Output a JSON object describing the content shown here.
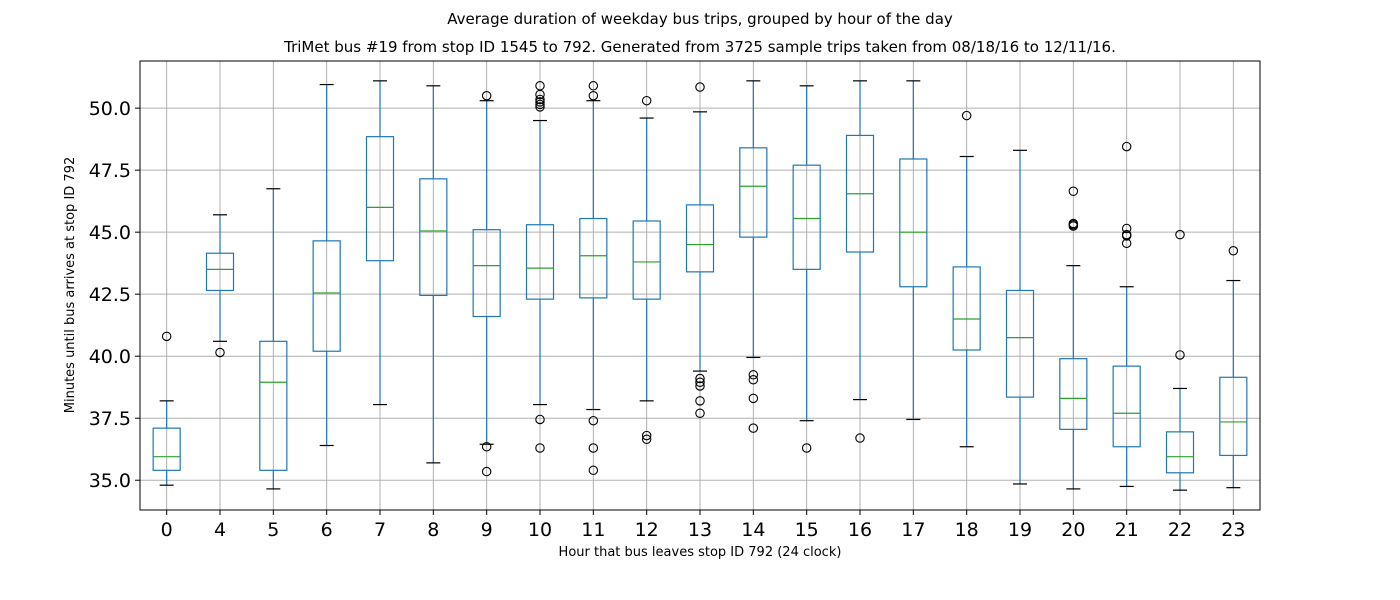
{
  "chart_data": {
    "type": "box",
    "title": "Average duration of weekday bus trips, grouped by hour of the day",
    "subtitle": "TriMet bus #19 from stop ID 1545 to 792. Generated from 3725 sample trips taken from 08/18/16 to 12/11/16.",
    "xlabel": "Hour that bus leaves stop ID 792 (24 clock)",
    "ylabel": "Minutes until bus arrives at stop ID 792",
    "ylim": [
      33.8,
      51.9
    ],
    "yticks": [
      35.0,
      37.5,
      40.0,
      42.5,
      45.0,
      47.5,
      50.0
    ],
    "ytick_labels": [
      "35.0",
      "37.5",
      "40.0",
      "42.5",
      "45.0",
      "47.5",
      "50.0"
    ],
    "grid": true,
    "categories": [
      "0",
      "4",
      "5",
      "6",
      "7",
      "8",
      "9",
      "10",
      "11",
      "12",
      "13",
      "14",
      "15",
      "16",
      "17",
      "18",
      "19",
      "20",
      "21",
      "22",
      "23"
    ],
    "boxes": [
      {
        "hour": "0",
        "whislo": 34.8,
        "q1": 35.4,
        "med": 35.95,
        "q3": 37.1,
        "whishi": 38.2,
        "fliers": [
          40.8
        ]
      },
      {
        "hour": "4",
        "whislo": 40.6,
        "q1": 42.65,
        "med": 43.5,
        "q3": 44.15,
        "whishi": 45.7,
        "fliers": [
          40.15
        ]
      },
      {
        "hour": "5",
        "whislo": 34.65,
        "q1": 35.4,
        "med": 38.95,
        "q3": 40.6,
        "whishi": 46.75,
        "fliers": []
      },
      {
        "hour": "6",
        "whislo": 36.4,
        "q1": 40.2,
        "med": 42.55,
        "q3": 44.65,
        "whishi": 50.95,
        "fliers": []
      },
      {
        "hour": "7",
        "whislo": 38.05,
        "q1": 43.85,
        "med": 46.0,
        "q3": 48.85,
        "whishi": 51.1,
        "fliers": []
      },
      {
        "hour": "8",
        "whislo": 35.7,
        "q1": 42.45,
        "med": 45.05,
        "q3": 47.15,
        "whishi": 50.9,
        "fliers": []
      },
      {
        "hour": "9",
        "whislo": 36.45,
        "q1": 41.6,
        "med": 43.65,
        "q3": 45.1,
        "whishi": 50.3,
        "fliers": [
          36.35,
          35.35,
          50.5
        ]
      },
      {
        "hour": "10",
        "whislo": 38.05,
        "q1": 42.3,
        "med": 43.55,
        "q3": 45.3,
        "whishi": 49.5,
        "fliers": [
          37.45,
          36.3,
          50.05,
          50.15,
          50.25,
          50.35,
          50.55,
          50.9
        ]
      },
      {
        "hour": "11",
        "whislo": 37.85,
        "q1": 42.35,
        "med": 44.05,
        "q3": 45.55,
        "whishi": 50.3,
        "fliers": [
          37.4,
          36.3,
          35.4,
          50.5,
          50.9
        ]
      },
      {
        "hour": "12",
        "whislo": 38.2,
        "q1": 42.3,
        "med": 43.8,
        "q3": 45.45,
        "whishi": 49.6,
        "fliers": [
          36.8,
          36.65,
          50.3
        ]
      },
      {
        "hour": "13",
        "whislo": 39.4,
        "q1": 43.4,
        "med": 44.5,
        "q3": 46.1,
        "whishi": 49.85,
        "fliers": [
          39.1,
          38.95,
          38.8,
          38.2,
          37.7,
          50.85
        ]
      },
      {
        "hour": "14",
        "whislo": 39.95,
        "q1": 44.8,
        "med": 46.85,
        "q3": 48.4,
        "whishi": 51.1,
        "fliers": [
          39.25,
          39.05,
          38.3,
          37.1
        ]
      },
      {
        "hour": "15",
        "whislo": 37.4,
        "q1": 43.5,
        "med": 45.55,
        "q3": 47.7,
        "whishi": 50.9,
        "fliers": [
          36.3
        ]
      },
      {
        "hour": "16",
        "whislo": 38.25,
        "q1": 44.2,
        "med": 46.55,
        "q3": 48.9,
        "whishi": 51.1,
        "fliers": [
          36.7
        ]
      },
      {
        "hour": "17",
        "whislo": 37.45,
        "q1": 42.8,
        "med": 45.0,
        "q3": 47.95,
        "whishi": 51.1,
        "fliers": []
      },
      {
        "hour": "18",
        "whislo": 36.35,
        "q1": 40.25,
        "med": 41.5,
        "q3": 43.6,
        "whishi": 48.05,
        "fliers": [
          49.7
        ]
      },
      {
        "hour": "19",
        "whislo": 34.85,
        "q1": 38.35,
        "med": 40.75,
        "q3": 42.65,
        "whishi": 48.3,
        "fliers": []
      },
      {
        "hour": "20",
        "whislo": 34.65,
        "q1": 37.05,
        "med": 38.3,
        "q3": 39.9,
        "whishi": 43.65,
        "fliers": [
          45.25,
          45.3,
          45.35,
          46.65
        ]
      },
      {
        "hour": "21",
        "whislo": 34.75,
        "q1": 36.35,
        "med": 37.7,
        "q3": 39.6,
        "whishi": 42.8,
        "fliers": [
          44.55,
          44.85,
          44.9,
          45.15,
          48.45
        ]
      },
      {
        "hour": "22",
        "whislo": 34.6,
        "q1": 35.3,
        "med": 35.95,
        "q3": 36.95,
        "whishi": 38.7,
        "fliers": [
          40.05,
          44.9
        ]
      },
      {
        "hour": "23",
        "whislo": 34.7,
        "q1": 36.0,
        "med": 37.35,
        "q3": 39.15,
        "whishi": 43.05,
        "fliers": [
          44.25
        ]
      }
    ],
    "colors": {
      "box": "#1f77b4",
      "median": "#2ca02c",
      "cap": "#000000",
      "flier": "#000000",
      "grid": "#b0b0b0"
    }
  }
}
